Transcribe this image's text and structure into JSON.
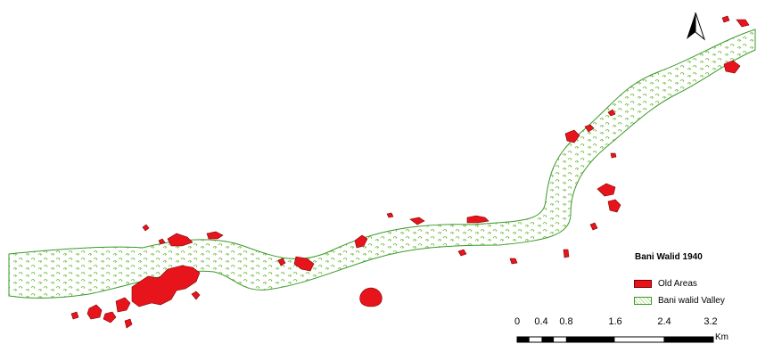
{
  "map": {
    "legend": {
      "title": "Bani Walid 1940",
      "items": [
        {
          "label": "Old Areas",
          "color": "#e8141c"
        },
        {
          "label": "Bani walid Valley",
          "color": "#5aaa28"
        }
      ]
    },
    "scale_bar": {
      "labels": [
        "0",
        "0.4",
        "0.8",
        "1.6",
        "2.4",
        "3.2"
      ],
      "unit": "Km"
    },
    "north_arrow_icon": "north-arrow-icon"
  }
}
